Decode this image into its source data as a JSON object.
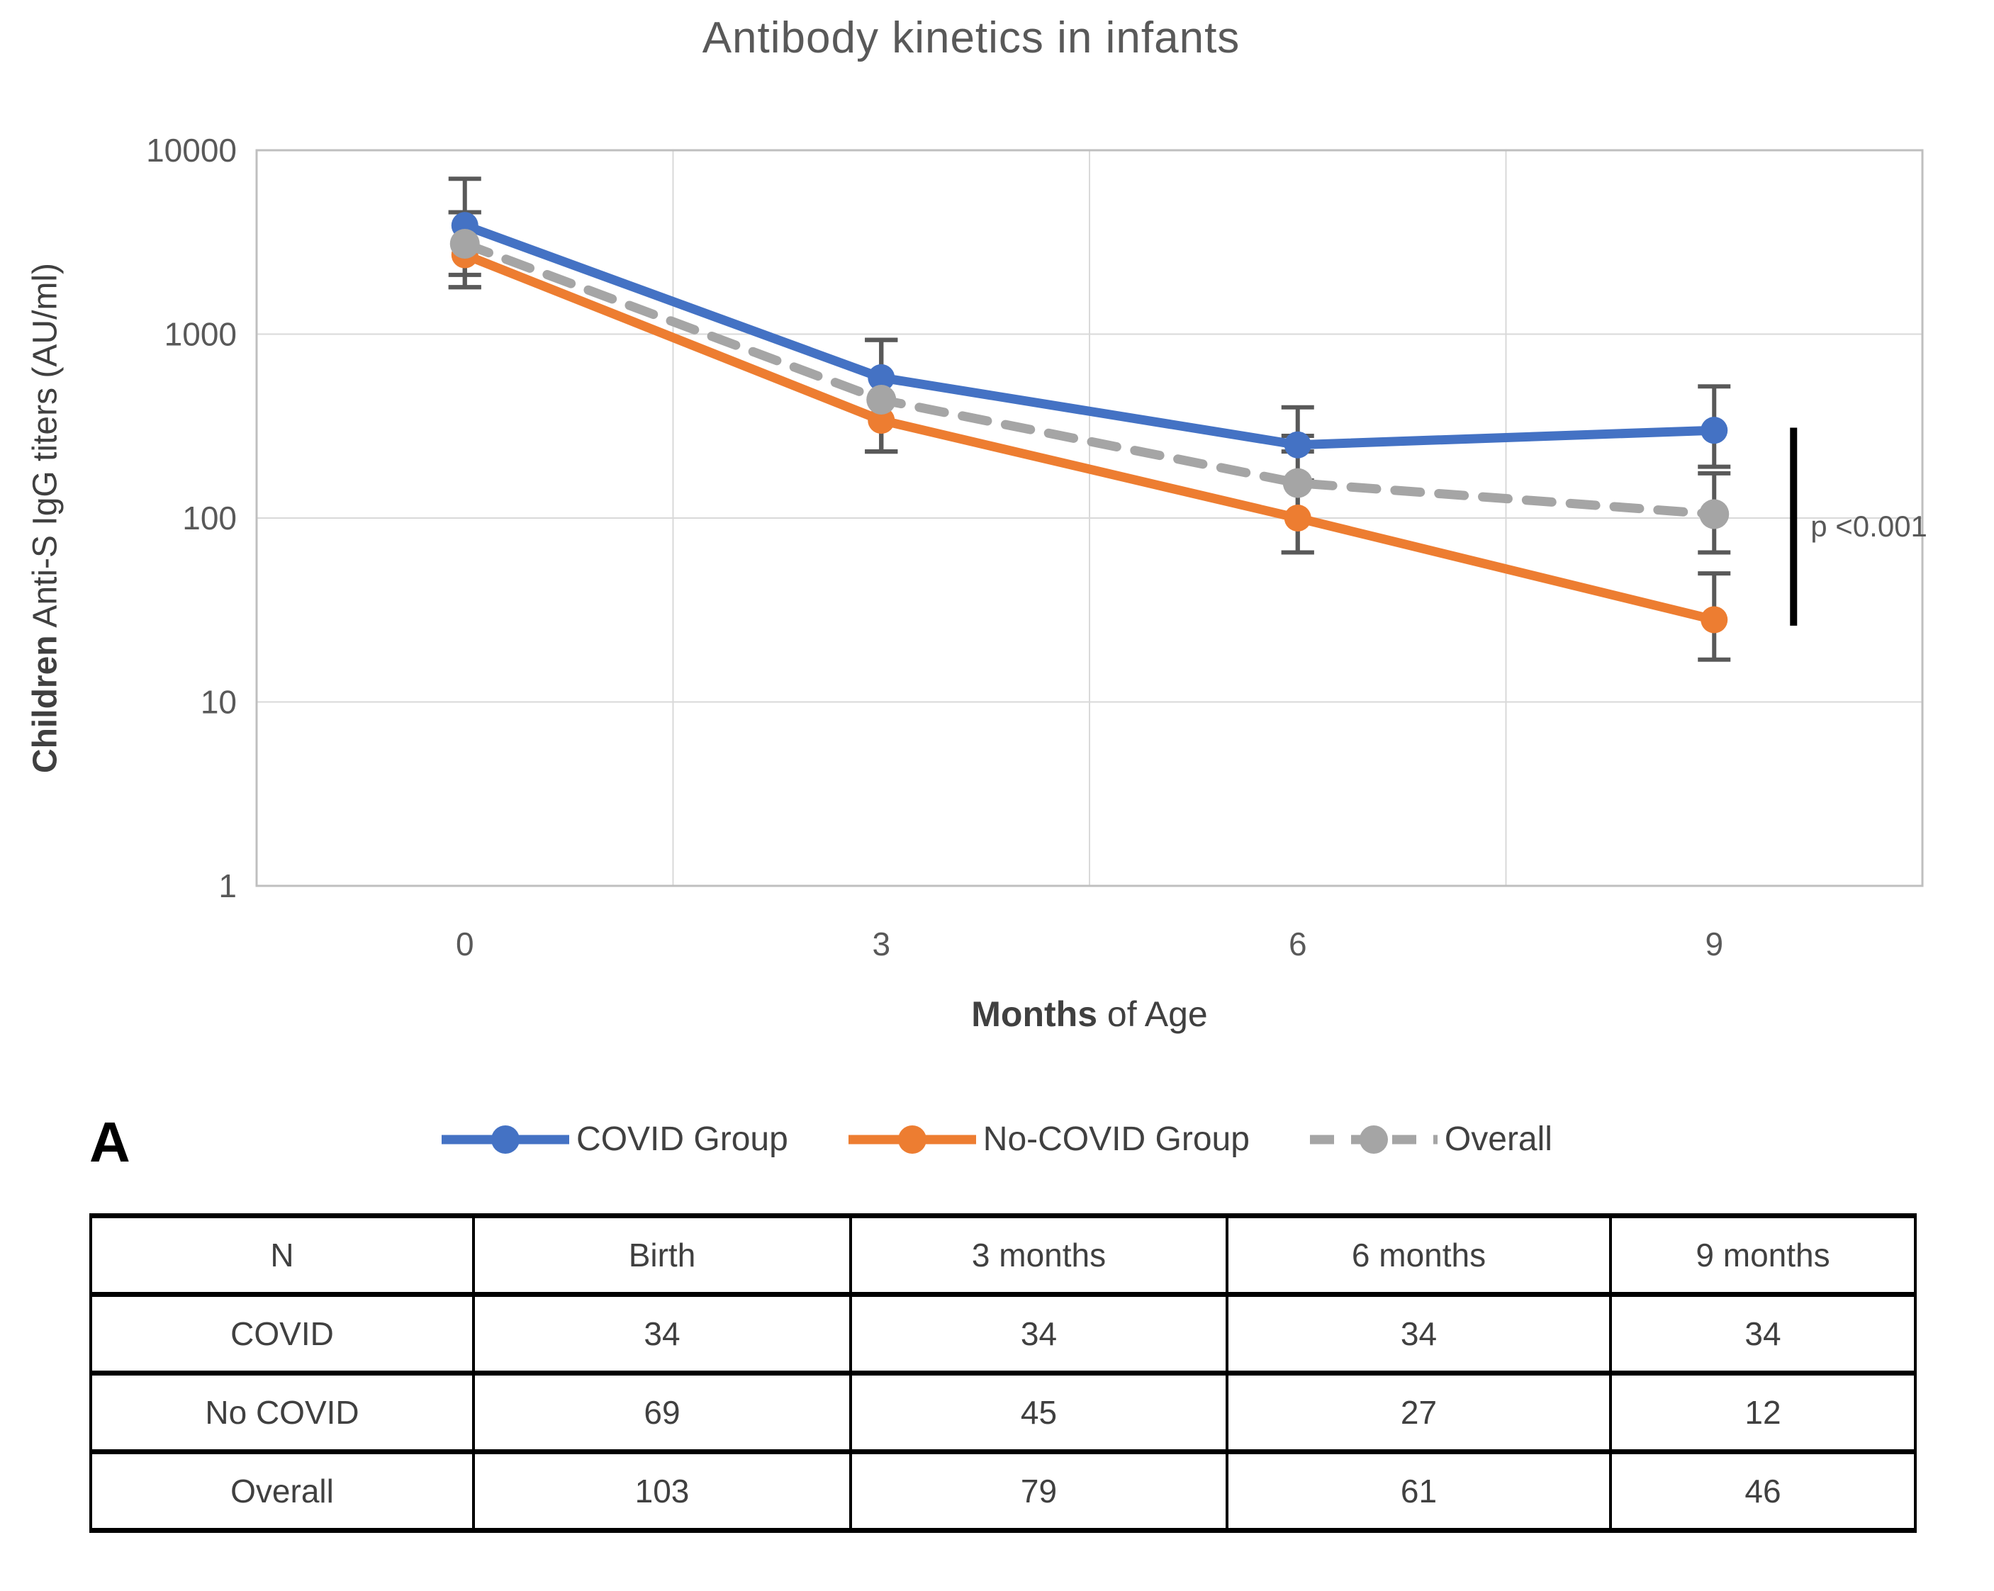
{
  "page": {
    "panel_label": "A"
  },
  "chart": {
    "title": "Antibody kinetics in infants",
    "y_axis": {
      "label_bold": "Children",
      "label_rest": " Anti-S IgG titers (AU/ml)"
    },
    "x_axis": {
      "label_bold": "Months",
      "label_rest": " of Age"
    }
  },
  "chart_data": {
    "type": "line",
    "title": "Antibody kinetics in infants",
    "xlabel": "Months of Age",
    "ylabel": "Children Anti-S IgG titers (AU/ml)",
    "categories": [
      "0",
      "3",
      "6",
      "9"
    ],
    "x_months": [
      0,
      3,
      6,
      9
    ],
    "y_scale": "log",
    "ylim": [
      1,
      10000
    ],
    "yticks": [
      10000,
      1000,
      100,
      10,
      1
    ],
    "grid": true,
    "legend_position": "bottom",
    "series": [
      {
        "name": "COVID Group",
        "color": "#4472C4",
        "dashed": false,
        "values": [
          3900,
          580,
          250,
          300
        ],
        "error_bars": [
          [
            2100,
            7000
          ],
          [
            230,
            930
          ],
          [
            230,
            400
          ],
          [
            190,
            520
          ]
        ]
      },
      {
        "name": "No-COVID Group",
        "color": "#ED7D31",
        "dashed": false,
        "values": [
          2700,
          340,
          100,
          28
        ],
        "error_bars": [
          [
            1800,
            4600
          ],
          [
            230,
            930
          ],
          [
            65,
            160
          ],
          [
            17,
            50
          ]
        ]
      },
      {
        "name": "Overall",
        "color": "#A5A5A5",
        "dashed": true,
        "values": [
          3100,
          440,
          155,
          105
        ],
        "error_bars": [
          [
            1800,
            4600
          ],
          [
            230,
            930
          ],
          [
            65,
            280
          ],
          [
            65,
            175
          ]
        ]
      }
    ],
    "annotation": {
      "text": "p <0.001",
      "value_span": [
        26,
        310
      ]
    }
  },
  "table": {
    "headers": [
      "N",
      "Birth",
      "3 months",
      "6 months",
      "9 months"
    ],
    "rows": [
      {
        "label": "COVID",
        "cells": [
          "34",
          "34",
          "34",
          "34"
        ]
      },
      {
        "label": "No COVID",
        "cells": [
          "69",
          "45",
          "27",
          "12"
        ]
      },
      {
        "label": "Overall",
        "cells": [
          "103",
          "79",
          "61",
          "46"
        ]
      }
    ]
  }
}
